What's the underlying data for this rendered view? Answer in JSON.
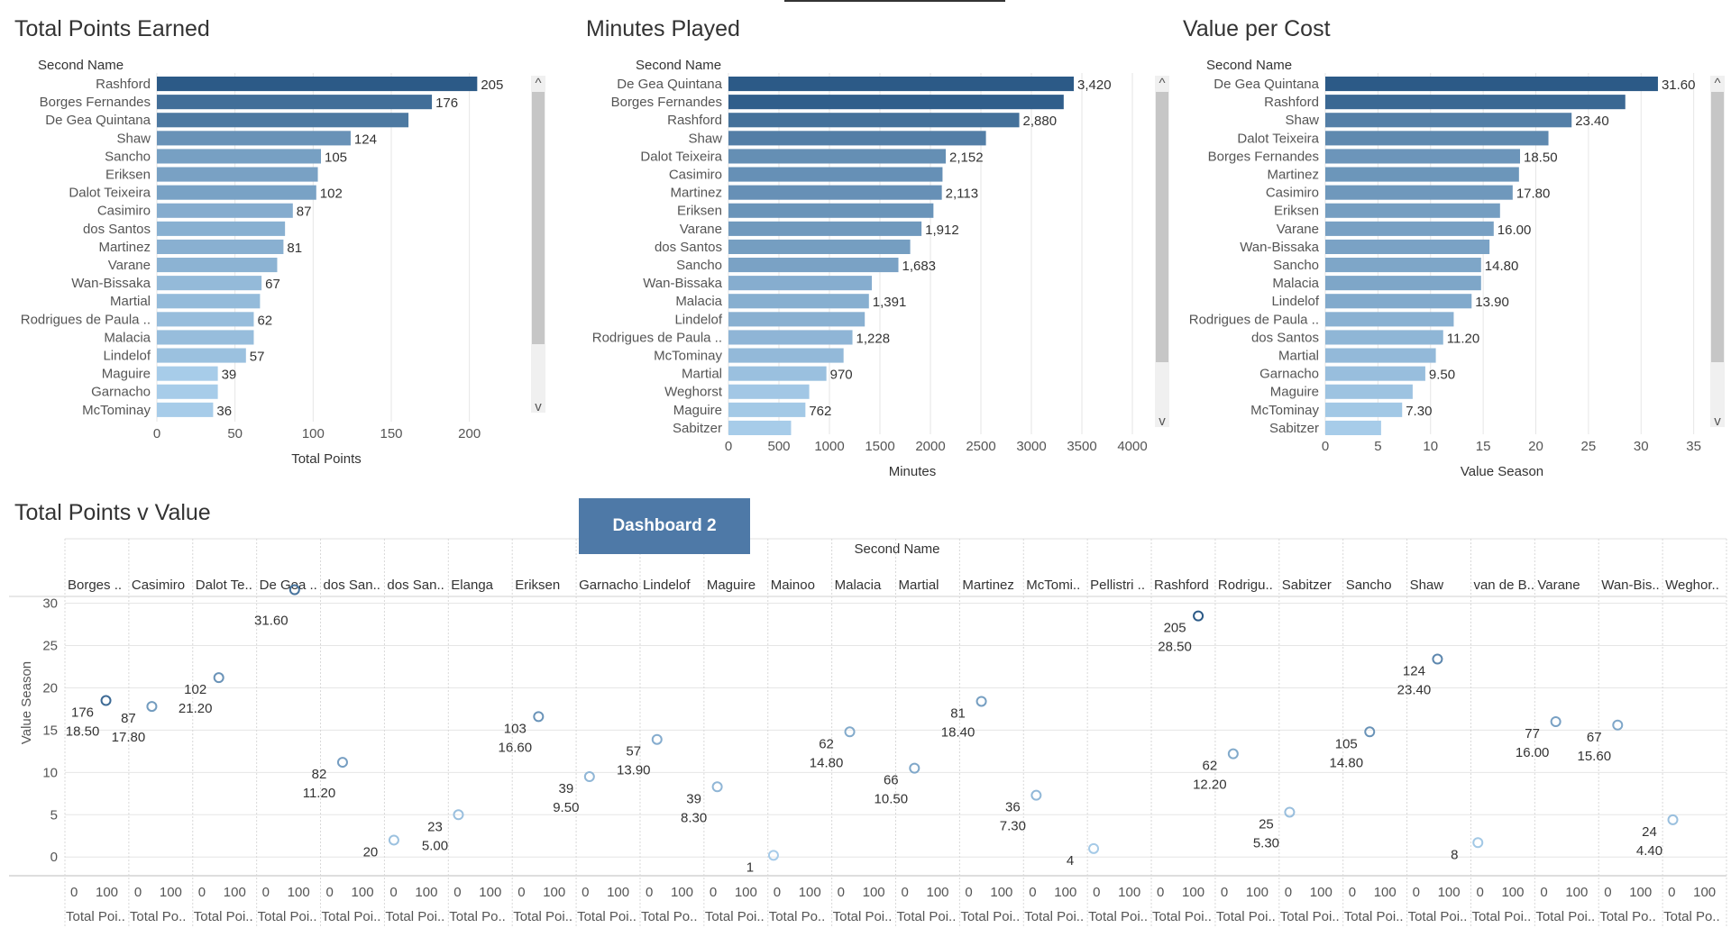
{
  "colors": {
    "bar_dark": "#2c5a87",
    "bar_light": "#a7cce9",
    "grid": "#e6e6e6",
    "marker": "#4e79a7"
  },
  "dashboard_button": {
    "label": "Dashboard 2"
  },
  "chart_data": [
    {
      "id": "total-points",
      "type": "bar",
      "title": "Total Points Earned",
      "row_header": "Second Name",
      "xlabel": "Total Points",
      "ticks": [
        0,
        50,
        100,
        150,
        200
      ],
      "xlim": [
        0,
        240
      ],
      "categories": [
        "Rashford",
        "Borges Fernandes",
        "De Gea Quintana",
        "Shaw",
        "Sancho",
        "Eriksen",
        "Dalot Teixeira",
        "Casimiro",
        "dos Santos",
        "Martinez",
        "Varane",
        "Wan-Bissaka",
        "Martial",
        "Rodrigues de Paula ..",
        "Malacia",
        "Lindelof",
        "Maguire",
        "Garnacho",
        "McTominay"
      ],
      "values": [
        205,
        176,
        161,
        124,
        105,
        103,
        102,
        87,
        82,
        81,
        77,
        67,
        66,
        62,
        62,
        57,
        39,
        39,
        36
      ],
      "labels": [
        "205",
        "176",
        "",
        "124",
        "105",
        "",
        "102",
        "87",
        "",
        "81",
        "",
        "67",
        "",
        "62",
        "",
        "57",
        "39",
        "",
        "36"
      ]
    },
    {
      "id": "minutes-played",
      "type": "bar",
      "title": "Minutes Played",
      "row_header": "Second Name",
      "xlabel": "Minutes",
      "ticks": [
        0,
        500,
        1000,
        1500,
        2000,
        2500,
        3000,
        3500,
        4000
      ],
      "xlim": [
        0,
        4000
      ],
      "categories": [
        "De Gea Quintana",
        "Borges Fernandes",
        "Rashford",
        "Shaw",
        "Dalot Teixeira",
        "Casimiro",
        "Martinez",
        "Eriksen",
        "Varane",
        "dos Santos",
        "Sancho",
        "Wan-Bissaka",
        "Malacia",
        "Lindelof",
        "Rodrigues de Paula ..",
        "McTominay",
        "Martial",
        "Weghorst",
        "Maguire",
        "Sabitzer"
      ],
      "values": [
        3420,
        3320,
        2880,
        2550,
        2152,
        2120,
        2113,
        2030,
        1912,
        1800,
        1683,
        1420,
        1391,
        1350,
        1228,
        1140,
        970,
        800,
        762,
        620
      ],
      "labels": [
        "3,420",
        "",
        "2,880",
        "",
        "2,152",
        "",
        "2,113",
        "",
        "1,912",
        "",
        "1,683",
        "",
        "1,391",
        "",
        "1,228",
        "",
        "970",
        "",
        "762",
        ""
      ]
    },
    {
      "id": "value-per-cost",
      "type": "bar",
      "title": "Value per Cost",
      "row_header": "Second Name",
      "xlabel": "Value Season",
      "ticks": [
        0,
        5,
        10,
        15,
        20,
        25,
        30,
        35
      ],
      "xlim": [
        0,
        37
      ],
      "categories": [
        "De Gea Quintana",
        "Rashford",
        "Shaw",
        "Dalot Teixeira",
        "Borges Fernandes",
        "Martinez",
        "Casimiro",
        "Eriksen",
        "Varane",
        "Wan-Bissaka",
        "Sancho",
        "Malacia",
        "Lindelof",
        "Rodrigues de Paula ..",
        "dos Santos",
        "Martial",
        "Garnacho",
        "Maguire",
        "McTominay",
        "Sabitzer"
      ],
      "values": [
        31.6,
        28.5,
        23.4,
        21.2,
        18.5,
        18.4,
        17.8,
        16.6,
        16.0,
        15.6,
        14.8,
        14.8,
        13.9,
        12.2,
        11.2,
        10.5,
        9.5,
        8.3,
        7.3,
        5.3
      ],
      "labels": [
        "31.60",
        "",
        "23.40",
        "",
        "18.50",
        "",
        "17.80",
        "",
        "16.00",
        "",
        "14.80",
        "",
        "13.90",
        "",
        "11.20",
        "",
        "9.50",
        "",
        "7.30",
        ""
      ]
    },
    {
      "id": "points-v-value",
      "type": "scatter",
      "title": "Total Points v Value",
      "column_header": "Second Name",
      "ylabel": "Value Season",
      "xlabel_cell": "Total Poi..",
      "yticks": [
        0,
        5,
        10,
        15,
        20,
        25,
        30
      ],
      "ylim": [
        -2,
        34
      ],
      "xticks": [
        "0",
        "100"
      ],
      "xlim": [
        0,
        280
      ],
      "columns": [
        {
          "name": "Borges ..",
          "points": 176,
          "value": 18.5,
          "label_pts": "176",
          "label_val": "18.50",
          "axis_title": "Total Poi.."
        },
        {
          "name": "Casimiro",
          "points": 87,
          "value": 17.8,
          "label_pts": "87",
          "label_val": "17.80",
          "axis_title": "Total Po.."
        },
        {
          "name": "Dalot Te..",
          "points": 102,
          "value": 21.2,
          "label_pts": "102",
          "label_val": "21.20",
          "axis_title": "Total Poi.."
        },
        {
          "name": "De Gea ..",
          "points": 161,
          "value": 31.6,
          "label_pts": "",
          "label_val": "31.60",
          "axis_title": "Total Poi.."
        },
        {
          "name": "dos San..",
          "points": 82,
          "value": 11.2,
          "label_pts": "82",
          "label_val": "11.20",
          "axis_title": "Total Poi.."
        },
        {
          "name": "dos San..",
          "points": 20,
          "value": 2.0,
          "label_pts": "20",
          "label_val": "",
          "axis_title": "Total Poi.."
        },
        {
          "name": "Elanga",
          "points": 23,
          "value": 5.0,
          "label_pts": "23",
          "label_val": "5.00",
          "axis_title": "Total Po.."
        },
        {
          "name": "Eriksen",
          "points": 103,
          "value": 16.6,
          "label_pts": "103",
          "label_val": "16.60",
          "axis_title": "Total Poi.."
        },
        {
          "name": "Garnacho",
          "points": 39,
          "value": 9.5,
          "label_pts": "39",
          "label_val": "9.50",
          "axis_title": "Total Poi.."
        },
        {
          "name": "Lindelof",
          "points": 57,
          "value": 13.9,
          "label_pts": "57",
          "label_val": "13.90",
          "axis_title": "Total Po.."
        },
        {
          "name": "Maguire",
          "points": 39,
          "value": 8.3,
          "label_pts": "39",
          "label_val": "8.30",
          "axis_title": "Total Poi.."
        },
        {
          "name": "Mainoo",
          "points": 1,
          "value": 0.2,
          "label_pts": "1",
          "label_val": "",
          "axis_title": "Total Po.."
        },
        {
          "name": "Malacia",
          "points": 62,
          "value": 14.8,
          "label_pts": "62",
          "label_val": "14.80",
          "axis_title": "Total Poi.."
        },
        {
          "name": "Martial",
          "points": 66,
          "value": 10.5,
          "label_pts": "66",
          "label_val": "10.50",
          "axis_title": "Total Poi.."
        },
        {
          "name": "Martinez",
          "points": 81,
          "value": 18.4,
          "label_pts": "81",
          "label_val": "18.40",
          "axis_title": "Total Poi.."
        },
        {
          "name": "McTomi..",
          "points": 36,
          "value": 7.3,
          "label_pts": "36",
          "label_val": "7.30",
          "axis_title": "Total Poi.."
        },
        {
          "name": "Pellistri ..",
          "points": 4,
          "value": 1.0,
          "label_pts": "4",
          "label_val": "",
          "axis_title": "Total Poi.."
        },
        {
          "name": "Rashford",
          "points": 205,
          "value": 28.5,
          "label_pts": "205",
          "label_val": "28.50",
          "axis_title": "Total Poi.."
        },
        {
          "name": "Rodrigu..",
          "points": 62,
          "value": 12.2,
          "label_pts": "62",
          "label_val": "12.20",
          "axis_title": "Total Poi.."
        },
        {
          "name": "Sabitzer",
          "points": 25,
          "value": 5.3,
          "label_pts": "25",
          "label_val": "5.30",
          "axis_title": "Total Poi.."
        },
        {
          "name": "Sancho",
          "points": 105,
          "value": 14.8,
          "label_pts": "105",
          "label_val": "14.80",
          "axis_title": "Total Poi.."
        },
        {
          "name": "Shaw",
          "points": 124,
          "value": 23.4,
          "label_pts": "124",
          "label_val": "23.40",
          "axis_title": "Total Poi.."
        },
        {
          "name": "van de B..",
          "points": 8,
          "value": 1.7,
          "label_pts": "8",
          "label_val": "",
          "axis_title": "Total Poi.."
        },
        {
          "name": "Varane",
          "points": 77,
          "value": 16.0,
          "label_pts": "77",
          "label_val": "16.00",
          "axis_title": "Total Poi.."
        },
        {
          "name": "Wan-Bis..",
          "points": 67,
          "value": 15.6,
          "label_pts": "67",
          "label_val": "15.60",
          "axis_title": "Total Po.."
        },
        {
          "name": "Weghor..",
          "points": 24,
          "value": 4.4,
          "label_pts": "24",
          "label_val": "4.40",
          "axis_title": "Total Po.."
        }
      ]
    }
  ]
}
